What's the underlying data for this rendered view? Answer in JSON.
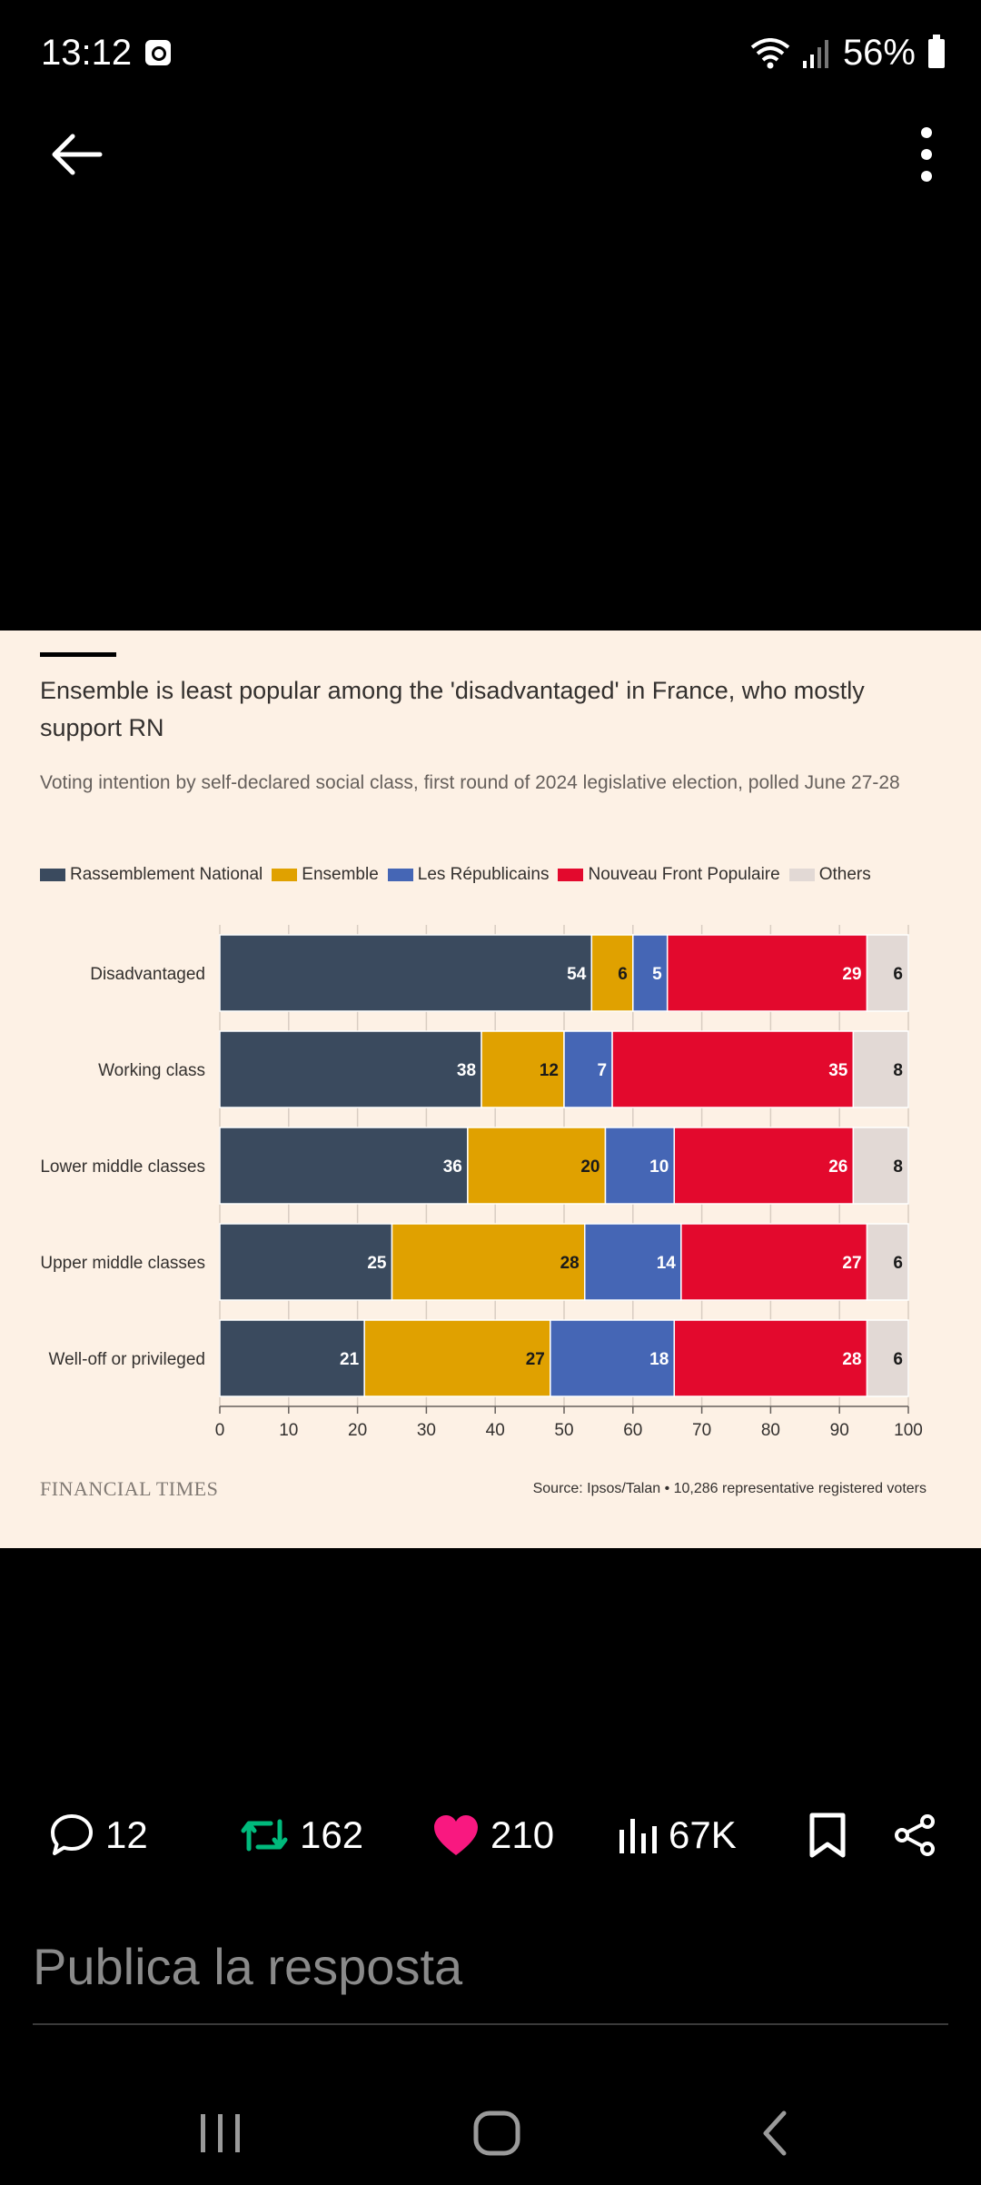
{
  "status_bar": {
    "time": "13:12",
    "battery": "56%"
  },
  "icons": {
    "back": "arrow-left-icon",
    "more": "more-vertical-icon",
    "reply": "comment-icon",
    "repost": "repost-icon",
    "like": "heart-icon",
    "views": "bar-chart-icon",
    "bookmark": "bookmark-icon",
    "share": "share-icon"
  },
  "chart_data": {
    "type": "bar",
    "orientation": "horizontal",
    "stacked": true,
    "title": "Ensemble is least popular among the 'disadvantaged' in France, who mostly support RN",
    "subtitle": "Voting intention by self-declared social class, first round of 2024 legislative election, polled June 27-28",
    "categories": [
      "Disadvantaged",
      "Working class",
      "Lower middle classes",
      "Upper middle classes",
      "Well-off or privileged"
    ],
    "series": [
      {
        "name": "Rassemblement National",
        "color": "#3A4A5E",
        "label_color": "#ffffff",
        "values": [
          54,
          38,
          36,
          25,
          21
        ]
      },
      {
        "name": "Ensemble",
        "color": "#E0A100",
        "label_color": "#1a1a1a",
        "values": [
          6,
          12,
          20,
          28,
          27
        ]
      },
      {
        "name": "Les Républicains",
        "color": "#4566B5",
        "label_color": "#ffffff",
        "values": [
          5,
          7,
          10,
          14,
          18
        ]
      },
      {
        "name": "Nouveau Front Populaire",
        "color": "#E3092D",
        "label_color": "#ffffff",
        "values": [
          29,
          35,
          26,
          27,
          28
        ]
      },
      {
        "name": "Others",
        "color": "#E2D9D5",
        "label_color": "#1a1a1a",
        "values": [
          6,
          8,
          8,
          6,
          6
        ]
      }
    ],
    "xlim": [
      0,
      100
    ],
    "xticks": [
      0,
      10,
      20,
      30,
      40,
      50,
      60,
      70,
      80,
      90,
      100
    ],
    "grid": true,
    "legend": "top-left",
    "source": "Source: Ipsos/Talan • 10,286 representative registered voters",
    "publisher": "FINANCIAL TIMES"
  },
  "actions": {
    "replies": "12",
    "reposts": "162",
    "likes": "210",
    "views": "67K",
    "repost_color": "#00BA7C",
    "like_color": "#F91880"
  },
  "reply": {
    "placeholder": "Publica la resposta"
  }
}
